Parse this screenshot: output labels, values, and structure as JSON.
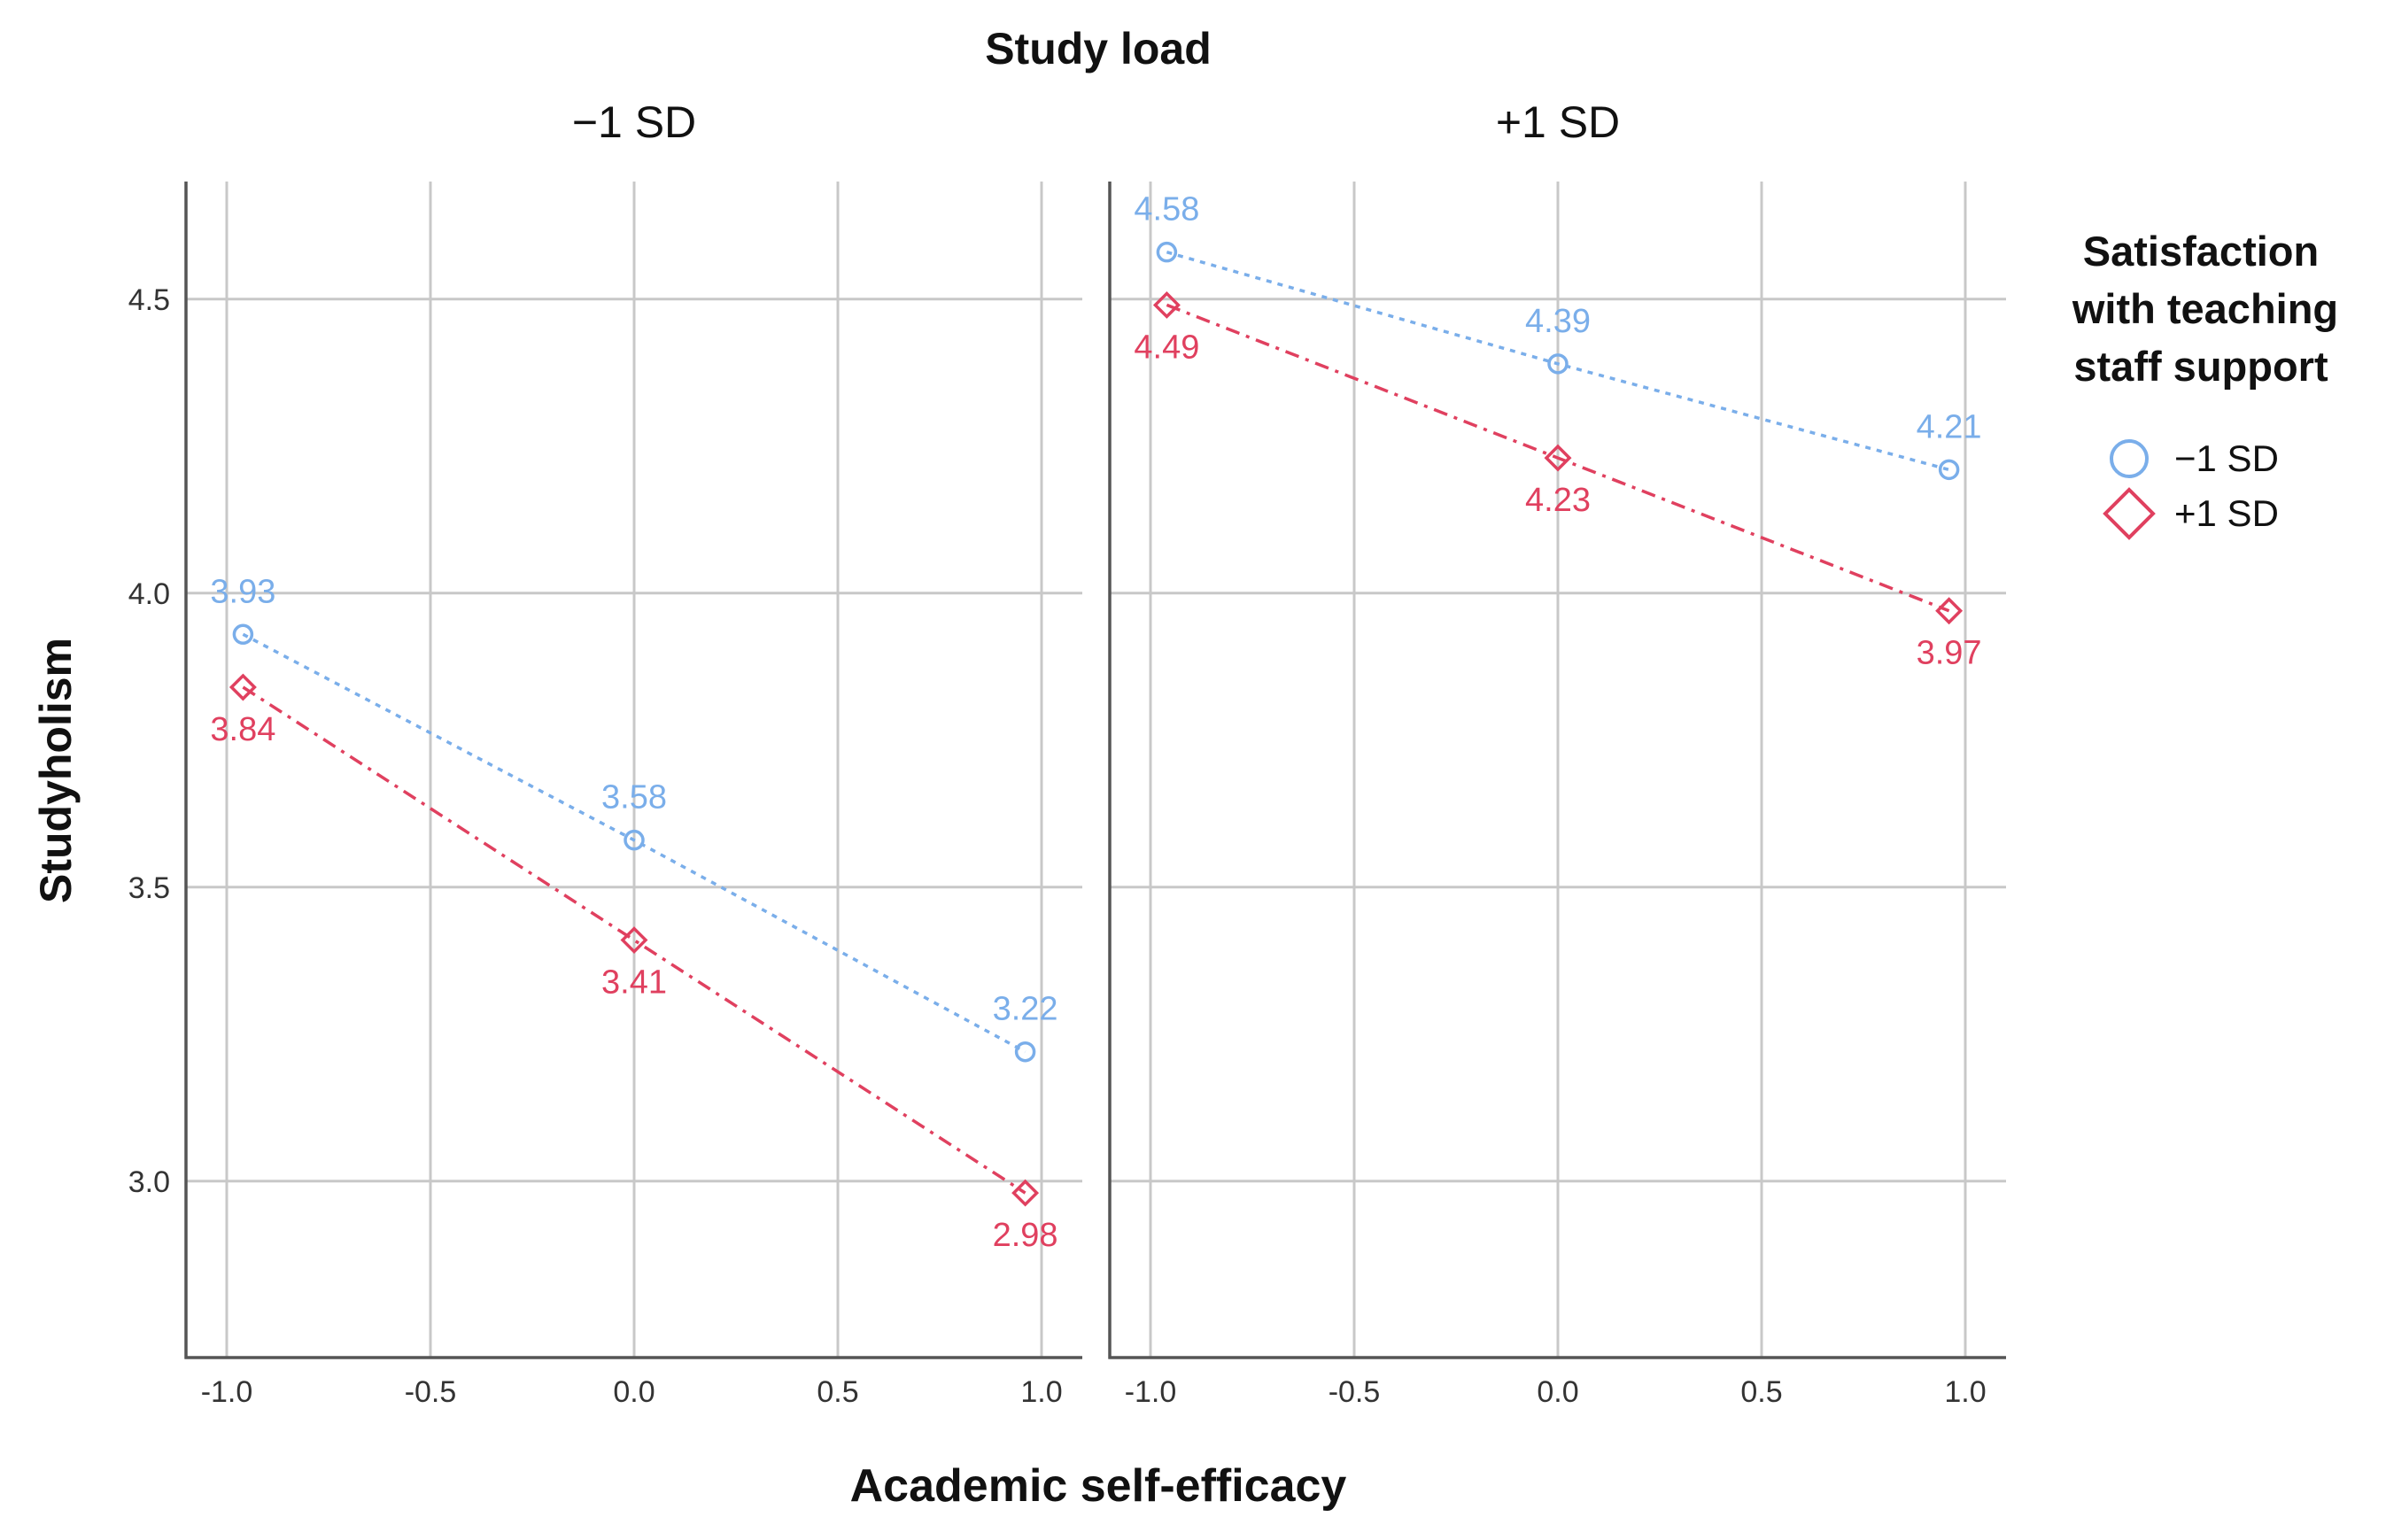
{
  "chart_data": {
    "type": "line",
    "title": "Study load",
    "xlabel": "Academic self-efficacy",
    "ylabel": "Studyholism",
    "xlim": [
      -1.1,
      1.1
    ],
    "ylim": [
      2.7,
      4.7
    ],
    "xticks": [
      -1.0,
      -0.5,
      0.0,
      0.5,
      1.0
    ],
    "xtick_labels": [
      "-1.0",
      "-0.5",
      "0.0",
      "0.5",
      "1.0"
    ],
    "yticks": [
      3.0,
      3.5,
      4.0,
      4.5
    ],
    "ytick_labels": [
      "3.0",
      "3.5",
      "4.0",
      "4.5"
    ],
    "legend": {
      "title_lines": [
        "Satisfaction",
        "with teaching",
        "staff support"
      ],
      "placement": "right",
      "entries": [
        {
          "label": "−1 SD",
          "marker": "circle",
          "color": "#7aaeea"
        },
        {
          "label": "+1 SD",
          "marker": "diamond",
          "color": "#e0405f"
        }
      ]
    },
    "panels": [
      {
        "title": "−1 SD",
        "series": [
          {
            "name": "−1 SD",
            "x": [
              -0.96,
              0.0,
              0.96
            ],
            "values": [
              3.93,
              3.58,
              3.22
            ],
            "labels": [
              "3.93",
              "3.58",
              "3.22"
            ]
          },
          {
            "name": "+1 SD",
            "x": [
              -0.96,
              0.0,
              0.96
            ],
            "values": [
              3.84,
              3.41,
              2.98
            ],
            "labels": [
              "3.84",
              "3.41",
              "2.98"
            ]
          }
        ]
      },
      {
        "title": "+1 SD",
        "series": [
          {
            "name": "−1 SD",
            "x": [
              -0.96,
              0.0,
              0.96
            ],
            "values": [
              4.58,
              4.39,
              4.21
            ],
            "labels": [
              "4.58",
              "4.39",
              "4.21"
            ]
          },
          {
            "name": "+1 SD",
            "x": [
              -0.96,
              0.0,
              0.96
            ],
            "values": [
              4.49,
              4.23,
              3.97
            ],
            "labels": [
              "4.49",
              "4.23",
              "3.97"
            ]
          }
        ]
      }
    ]
  }
}
